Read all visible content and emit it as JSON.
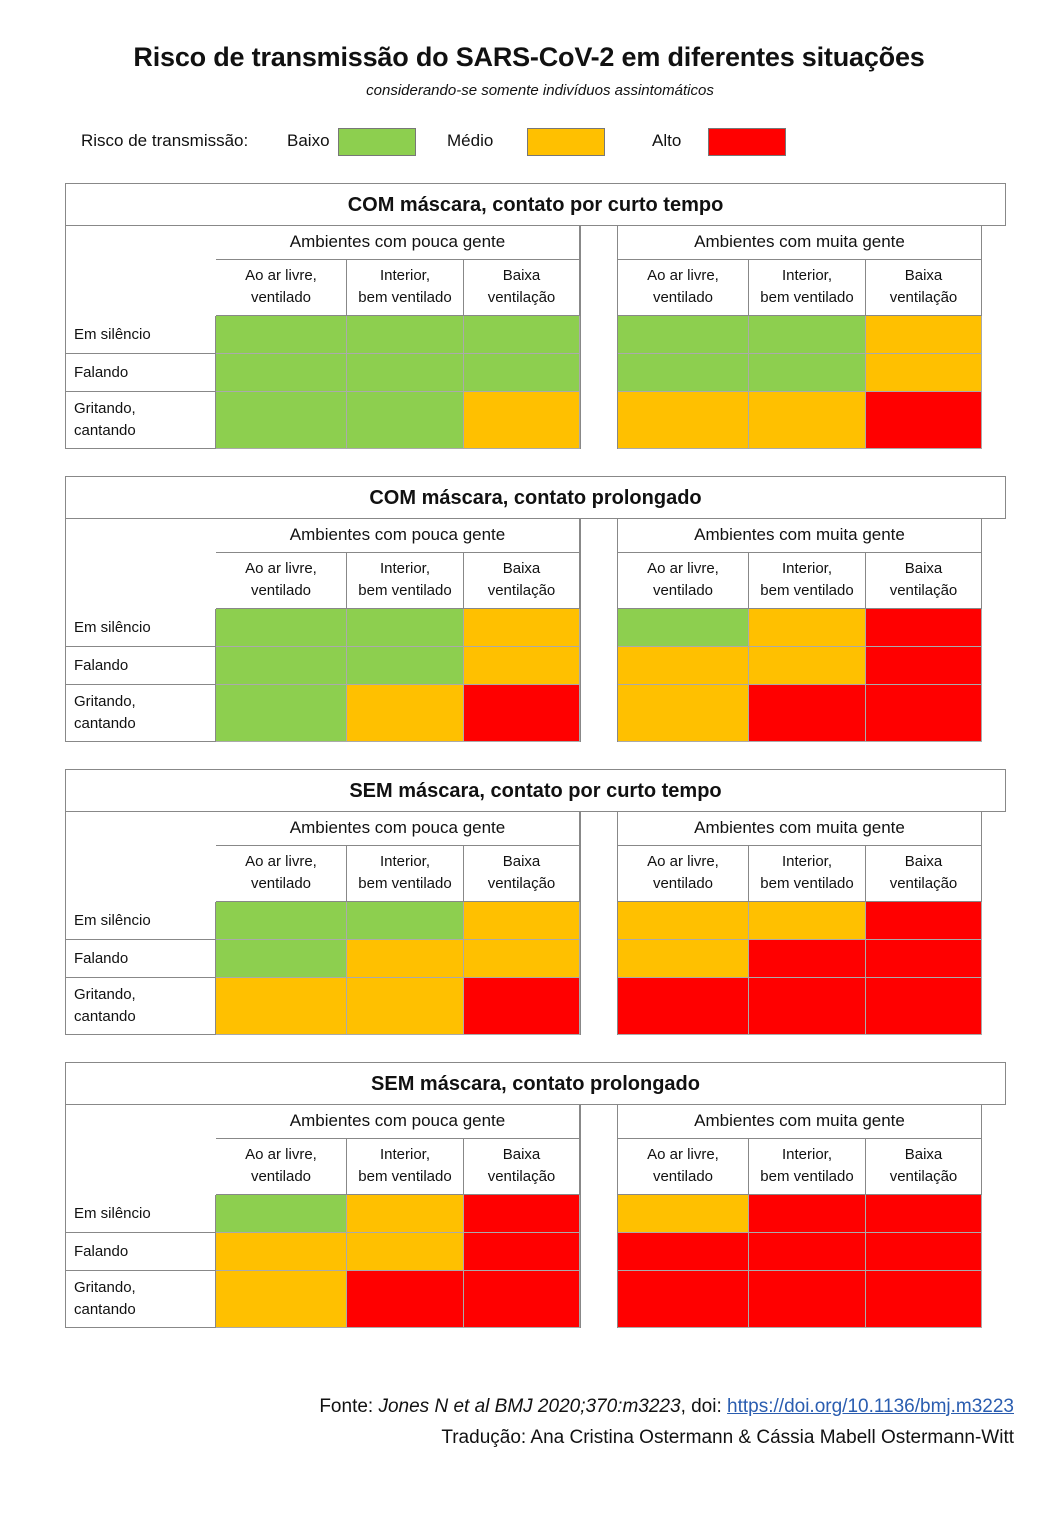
{
  "title": "Risco de transmissão do SARS-CoV-2 em diferentes situações",
  "subtitle": "considerando-se somente indivíduos assintomáticos",
  "legend": {
    "label": "Risco de transmissão:",
    "items": [
      {
        "label": "Baixo",
        "color": "#8dcf4f"
      },
      {
        "label": "Médio",
        "color": "#ffc000"
      },
      {
        "label": "Alto",
        "color": "#ff0000"
      }
    ]
  },
  "chart_data": {
    "type": "heatmap",
    "risk_colors": {
      "Baixo": "#8dcf4f",
      "Médio": "#ffc000",
      "Alto": "#ff0000"
    },
    "groups": [
      "Ambientes com pouca gente",
      "Ambientes com muita gente"
    ],
    "columns": [
      "Ao ar livre, ventilado",
      "Interior, bem ventilado",
      "Baixa ventilação"
    ],
    "rows": [
      "Em silêncio",
      "Falando",
      "Gritando, cantando"
    ],
    "panels": [
      {
        "title": "COM máscara, contato por curto tempo",
        "values": [
          [
            "Baixo",
            "Baixo",
            "Baixo",
            "Baixo",
            "Baixo",
            "Médio"
          ],
          [
            "Baixo",
            "Baixo",
            "Baixo",
            "Baixo",
            "Baixo",
            "Médio"
          ],
          [
            "Baixo",
            "Baixo",
            "Médio",
            "Médio",
            "Médio",
            "Alto"
          ]
        ]
      },
      {
        "title": "COM máscara, contato prolongado",
        "values": [
          [
            "Baixo",
            "Baixo",
            "Médio",
            "Baixo",
            "Médio",
            "Alto"
          ],
          [
            "Baixo",
            "Baixo",
            "Médio",
            "Médio",
            "Médio",
            "Alto"
          ],
          [
            "Baixo",
            "Médio",
            "Alto",
            "Médio",
            "Alto",
            "Alto"
          ]
        ]
      },
      {
        "title": "SEM máscara, contato por curto tempo",
        "values": [
          [
            "Baixo",
            "Baixo",
            "Médio",
            "Médio",
            "Médio",
            "Alto"
          ],
          [
            "Baixo",
            "Médio",
            "Médio",
            "Médio",
            "Alto",
            "Alto"
          ],
          [
            "Médio",
            "Médio",
            "Alto",
            "Alto",
            "Alto",
            "Alto"
          ]
        ]
      },
      {
        "title": "SEM máscara, contato prolongado",
        "values": [
          [
            "Baixo",
            "Médio",
            "Alto",
            "Médio",
            "Alto",
            "Alto"
          ],
          [
            "Médio",
            "Médio",
            "Alto",
            "Alto",
            "Alto",
            "Alto"
          ],
          [
            "Médio",
            "Alto",
            "Alto",
            "Alto",
            "Alto",
            "Alto"
          ]
        ]
      }
    ]
  },
  "footer": {
    "source_prefix": "Fonte: ",
    "source_ref": "Jones N et al BMJ 2020;370:m3223",
    "doi_prefix": ", doi: ",
    "doi_link": "https://doi.org/10.1136/bmj.m3223",
    "credit": "Tradução: Ana Cristina Ostermann & Cássia Mabell Ostermann-Witt"
  }
}
